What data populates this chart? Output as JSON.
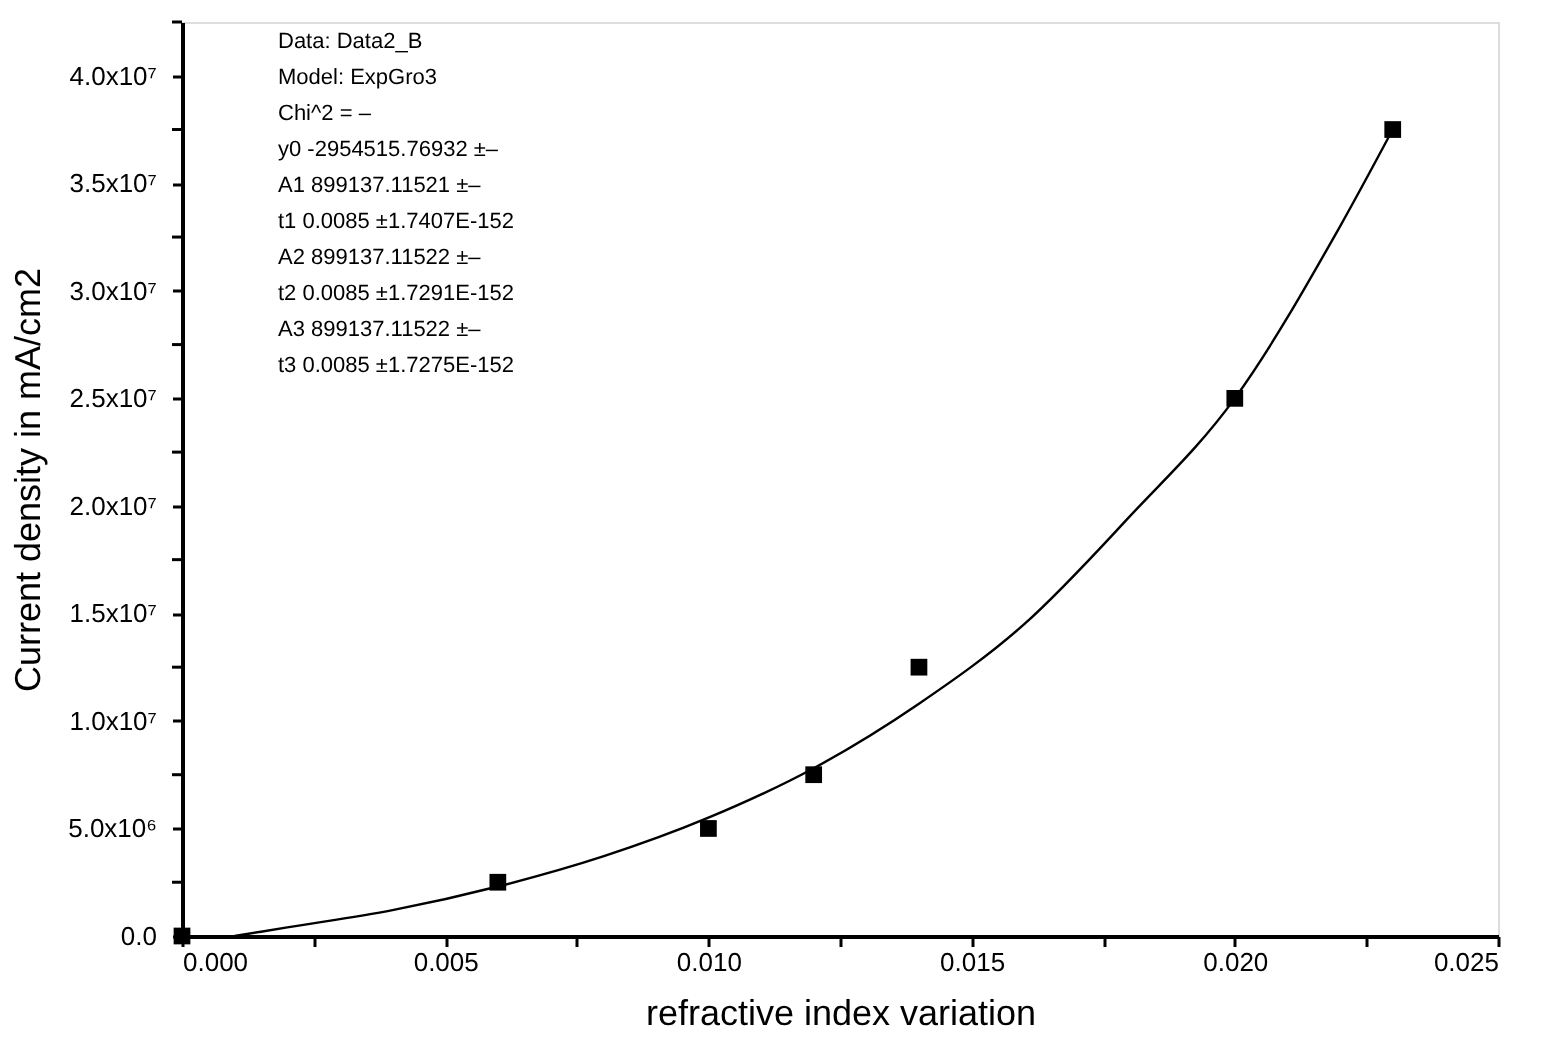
{
  "chart_data": {
    "type": "scatter",
    "xlabel": "refractive index variation",
    "ylabel": "Current density in mA/cm2",
    "series": [
      {
        "color": "#000000",
        "marker": "square",
        "x": [
          0.0,
          0.006,
          0.01,
          0.012,
          0.014,
          0.02,
          0.023
        ],
        "values": [
          0,
          2500000,
          5000000,
          7500000,
          12500000,
          25000000,
          37500000
        ]
      },
      {
        "type": "line",
        "color": "#000000",
        "marker": "none",
        "line_style": "solid",
        "x": [
          0.001,
          0.002,
          0.004,
          0.006,
          0.008,
          0.01,
          0.012,
          0.014,
          0.016,
          0.018,
          0.02,
          0.022,
          0.023
        ],
        "values": [
          0,
          400000,
          1200000,
          2300000,
          3700000,
          5500000,
          7800000,
          10800000,
          14500000,
          19500000,
          25000000,
          33000000,
          37500000
        ]
      }
    ],
    "xlim": [
      0,
      0.025
    ],
    "xticks": [
      {
        "value": 0,
        "label": "0.000"
      },
      {
        "value": 0.0025,
        "label": null
      },
      {
        "value": 0.005,
        "label": "0.005"
      },
      {
        "value": 0.0075,
        "label": null
      },
      {
        "value": 0.01,
        "label": "0.010"
      },
      {
        "value": 0.0125,
        "label": null
      },
      {
        "value": 0.015,
        "label": "0.015"
      },
      {
        "value": 0.0175,
        "label": null
      },
      {
        "value": 0.02,
        "label": "0.020"
      },
      {
        "value": 0.0225,
        "label": null
      },
      {
        "value": 0.025,
        "label": "0.025"
      }
    ],
    "ylim": [
      0,
      42500000
    ],
    "yticks": [
      {
        "value": 0,
        "label": "0.0"
      },
      {
        "value": 2500000,
        "label": null
      },
      {
        "value": 5000000,
        "label": "5.0x10⁶"
      },
      {
        "value": 7500000,
        "label": null
      },
      {
        "value": 10000000,
        "label": "1.0x10⁷"
      },
      {
        "value": 12500000,
        "label": null
      },
      {
        "value": 15000000,
        "label": "1.5x10⁷"
      },
      {
        "value": 17500000,
        "label": null
      },
      {
        "value": 20000000,
        "label": "2.0x10⁷"
      },
      {
        "value": 22500000,
        "label": null
      },
      {
        "value": 25000000,
        "label": "2.5x10⁷"
      },
      {
        "value": 27500000,
        "label": null
      },
      {
        "value": 30000000,
        "label": "3.0x10⁷"
      },
      {
        "value": 32500000,
        "label": null
      },
      {
        "value": 35000000,
        "label": "3.5x10⁷"
      },
      {
        "value": 37500000,
        "label": null
      },
      {
        "value": 40000000,
        "label": "4.0x10⁷"
      },
      {
        "value": 42500000,
        "label": null
      }
    ],
    "grid": false,
    "annotations": [
      "Data: Data2_B",
      "Model: ExpGro3",
      "Chi^2 = –",
      "y0        -2954515.76932          ±–",
      "A1        899137.11521  ±–",
      "t1         0.0085 ±1.7407E-152",
      "A2        899137.11522  ±–",
      "t2         0.0085 ±1.7291E-152",
      "A3        899137.11522  ±–",
      "t3         0.0085 ±1.7275E-152"
    ]
  }
}
